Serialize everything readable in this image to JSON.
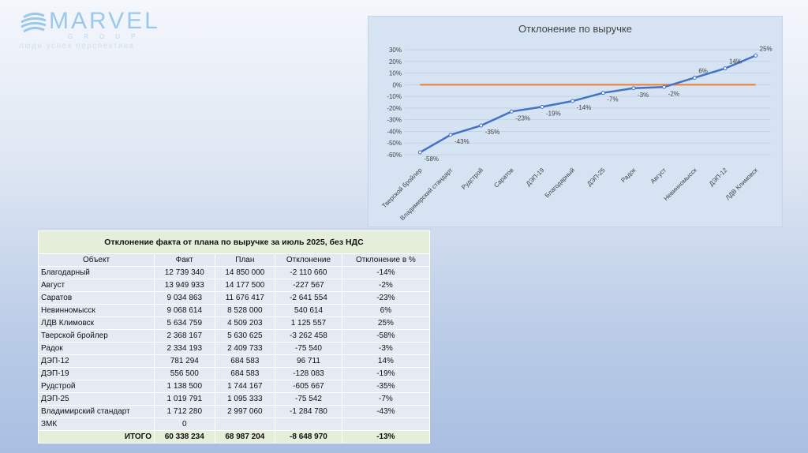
{
  "logo": {
    "word": "MARVEL",
    "group": "GROUP",
    "tagline": "люди успех перспектива"
  },
  "chart_data": {
    "type": "line",
    "title": "Отклонение по выручке",
    "categories": [
      "Тверской бройлер",
      "Владимирский стандарт",
      "Рудстрой",
      "Саратов",
      "ДЭП-19",
      "Благодарный",
      "ДЭП-25",
      "Радок",
      "Август",
      "Невинномысск",
      "ДЭП-12",
      "ЛДВ Климовск"
    ],
    "series": [
      {
        "name": "Отклонение в %",
        "values": [
          -58,
          -43,
          -35,
          -23,
          -19,
          -14,
          -7,
          -3,
          -2,
          6,
          14,
          25
        ],
        "color": "#4472c4"
      },
      {
        "name": "0",
        "values": [
          0,
          0,
          0,
          0,
          0,
          0,
          0,
          0,
          0,
          0,
          0,
          0
        ],
        "color": "#ed7d31"
      }
    ],
    "ylim": [
      -60,
      30
    ],
    "yticks": [
      30,
      20,
      10,
      0,
      -10,
      -20,
      -30,
      -40,
      -50,
      -60
    ],
    "grid": true
  },
  "table": {
    "title": "Отклонение факта от плана по выручке за июль 2025, без НДС",
    "headers": [
      "Объект",
      "Факт",
      "План",
      "Отклонение",
      "Отклонение в %"
    ],
    "rows": [
      [
        "Благодарный",
        "12 739 340",
        "14 850 000",
        "-2 110 660",
        "-14%"
      ],
      [
        "Август",
        "13 949 933",
        "14 177 500",
        "-227 567",
        "-2%"
      ],
      [
        "Саратов",
        "9 034 863",
        "11 676 417",
        "-2 641 554",
        "-23%"
      ],
      [
        "Невинномысск",
        "9 068 614",
        "8 528 000",
        "540 614",
        "6%"
      ],
      [
        "ЛДВ Климовск",
        "5 634 759",
        "4 509 203",
        "1 125 557",
        "25%"
      ],
      [
        "Тверской бройлер",
        "2 368 167",
        "5 630 625",
        "-3 262 458",
        "-58%"
      ],
      [
        "Радок",
        "2 334 193",
        "2 409 733",
        "-75 540",
        "-3%"
      ],
      [
        "ДЭП-12",
        "781 294",
        "684 583",
        "96 711",
        "14%"
      ],
      [
        "ДЭП-19",
        "556 500",
        "684 583",
        "-128 083",
        "-19%"
      ],
      [
        "Рудстрой",
        "1 138 500",
        "1 744 167",
        "-605 667",
        "-35%"
      ],
      [
        "ДЭП-25",
        "1 019 791",
        "1 095 333",
        "-75 542",
        "-7%"
      ],
      [
        "Владимирский стандарт",
        "1 712 280",
        "2 997 060",
        "-1 284 780",
        "-43%"
      ],
      [
        "ЗМК",
        "0",
        "",
        "",
        ""
      ]
    ],
    "total": [
      "ИТОГО",
      "60 338 234",
      "68 987 204",
      "-8 648 970",
      "-13%"
    ]
  }
}
